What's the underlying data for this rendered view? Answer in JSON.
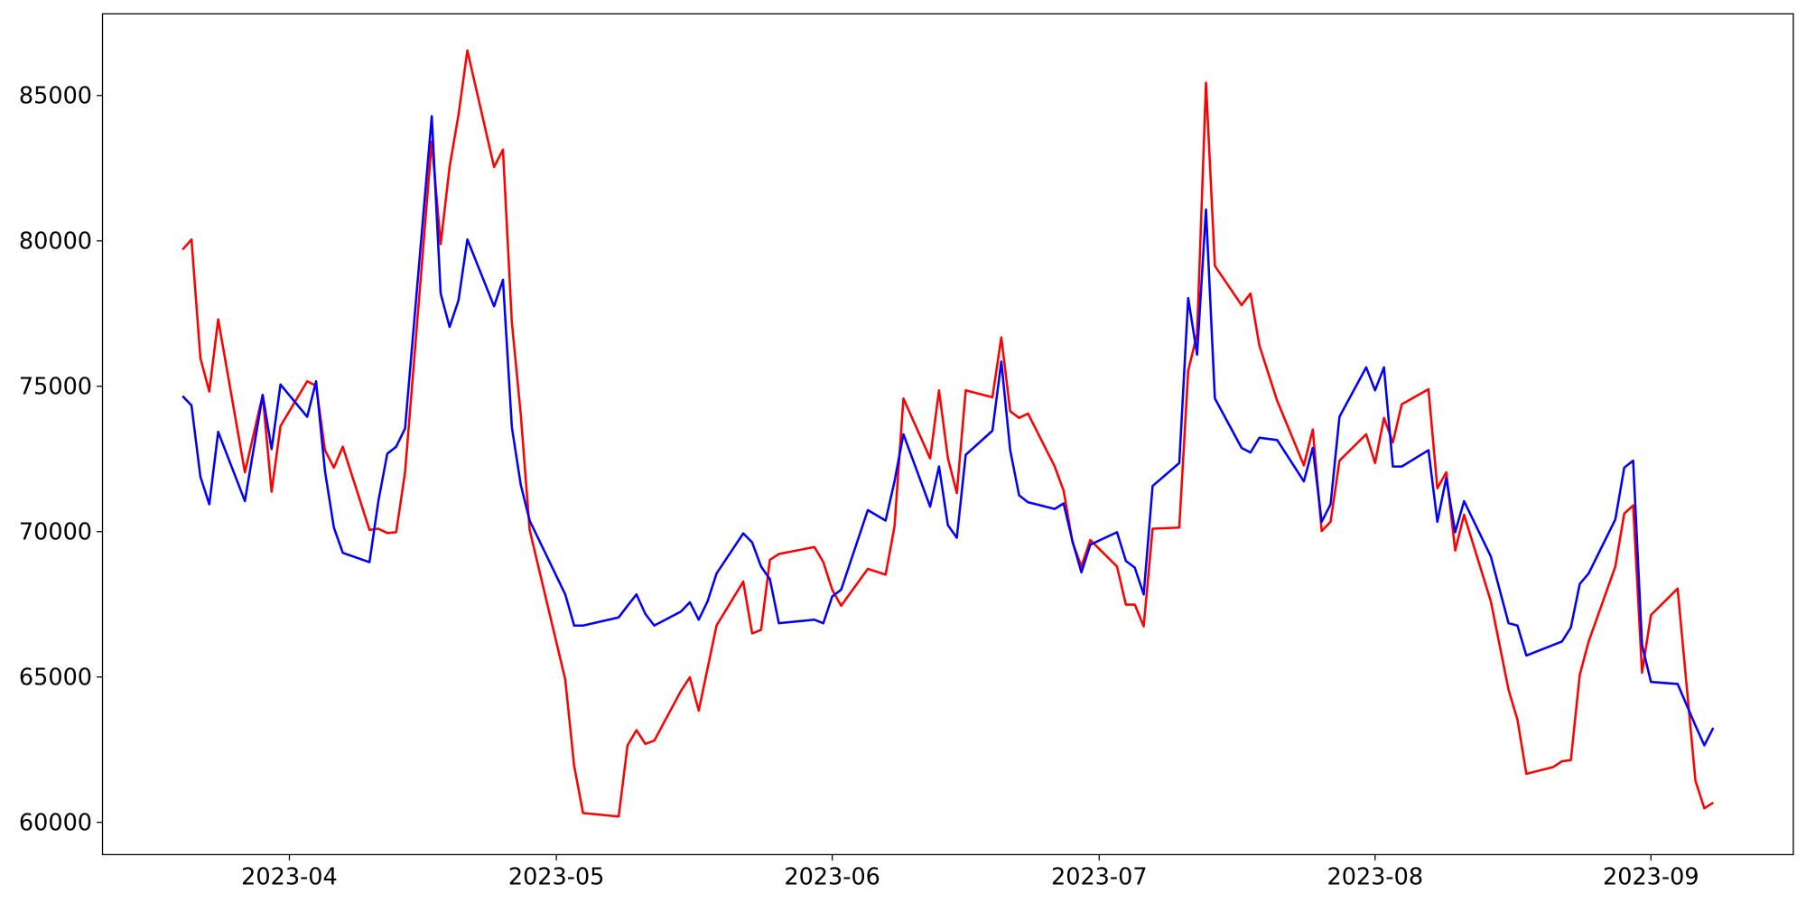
{
  "chart_data": {
    "type": "line",
    "x": [
      "2023-03-20",
      "2023-03-21",
      "2023-03-22",
      "2023-03-23",
      "2023-03-24",
      "2023-03-27",
      "2023-03-29",
      "2023-03-30",
      "2023-03-31",
      "2023-04-03",
      "2023-04-04",
      "2023-04-05",
      "2023-04-06",
      "2023-04-07",
      "2023-04-10",
      "2023-04-11",
      "2023-04-12",
      "2023-04-13",
      "2023-04-14",
      "2023-04-17",
      "2023-04-18",
      "2023-04-19",
      "2023-04-20",
      "2023-04-21",
      "2023-04-24",
      "2023-04-25",
      "2023-04-26",
      "2023-04-27",
      "2023-04-28",
      "2023-05-02",
      "2023-05-03",
      "2023-05-04",
      "2023-05-08",
      "2023-05-09",
      "2023-05-10",
      "2023-05-11",
      "2023-05-12",
      "2023-05-15",
      "2023-05-16",
      "2023-05-17",
      "2023-05-18",
      "2023-05-19",
      "2023-05-22",
      "2023-05-23",
      "2023-05-24",
      "2023-05-25",
      "2023-05-26",
      "2023-05-30",
      "2023-05-31",
      "2023-06-01",
      "2023-06-02",
      "2023-06-05",
      "2023-06-07",
      "2023-06-08",
      "2023-06-09",
      "2023-06-12",
      "2023-06-13",
      "2023-06-14",
      "2023-06-15",
      "2023-06-16",
      "2023-06-19",
      "2023-06-20",
      "2023-06-21",
      "2023-06-22",
      "2023-06-23",
      "2023-06-26",
      "2023-06-27",
      "2023-06-28",
      "2023-06-29",
      "2023-06-30",
      "2023-07-03",
      "2023-07-04",
      "2023-07-05",
      "2023-07-06",
      "2023-07-07",
      "2023-07-10",
      "2023-07-11",
      "2023-07-12",
      "2023-07-13",
      "2023-07-14",
      "2023-07-17",
      "2023-07-18",
      "2023-07-19",
      "2023-07-21",
      "2023-07-24",
      "2023-07-25",
      "2023-07-26",
      "2023-07-27",
      "2023-07-28",
      "2023-07-31",
      "2023-08-01",
      "2023-08-02",
      "2023-08-03",
      "2023-08-04",
      "2023-08-07",
      "2023-08-08",
      "2023-08-09",
      "2023-08-10",
      "2023-08-11",
      "2023-08-14",
      "2023-08-16",
      "2023-08-17",
      "2023-08-18",
      "2023-08-21",
      "2023-08-22",
      "2023-08-23",
      "2023-08-24",
      "2023-08-25",
      "2023-08-28",
      "2023-08-29",
      "2023-08-30",
      "2023-08-31",
      "2023-09-01",
      "2023-09-04",
      "2023-09-06",
      "2023-09-07",
      "2023-09-08"
    ],
    "series": [
      {
        "color": "#ff0000",
        "values": [
          79700,
          80050,
          75970,
          74820,
          77300,
          72040,
          74700,
          71370,
          73630,
          75170,
          75020,
          72800,
          72200,
          72920,
          70060,
          70100,
          69950,
          69980,
          72040,
          83420,
          79890,
          82540,
          84330,
          86550,
          82540,
          83140,
          77200,
          74030,
          70060,
          64910,
          61940,
          60320,
          60200,
          62650,
          63170,
          62700,
          62810,
          64520,
          64990,
          63840,
          65310,
          66770,
          68280,
          66500,
          66620,
          69030,
          69230,
          69470,
          68950,
          68000,
          67450,
          68720,
          68520,
          70180,
          74580,
          72520,
          74860,
          72520,
          71330,
          74860,
          74620,
          76680,
          74140,
          73910,
          74060,
          72240,
          71410,
          69630,
          68800,
          69710,
          68800,
          67490,
          67490,
          66740,
          70100,
          70140,
          75530,
          76800,
          85440,
          79140,
          77790,
          78190,
          76400,
          74500,
          72280,
          73510,
          70020,
          70340,
          72440,
          73350,
          72360,
          73910,
          73070,
          74380,
          74900,
          71490,
          72040,
          69350,
          70580,
          67610,
          64560,
          63530,
          61670,
          61900,
          62100,
          62140,
          65070,
          66220,
          68800,
          70620,
          70900,
          65150,
          67130,
          68040,
          61430,
          60480,
          60680
        ]
      },
      {
        "color": "#0000ff",
        "values": [
          74660,
          74340,
          71890,
          70940,
          73430,
          71050,
          74700,
          72840,
          75060,
          73950,
          75170,
          72080,
          70140,
          69270,
          68950,
          71050,
          72680,
          72920,
          73550,
          84290,
          78190,
          77040,
          77950,
          80050,
          77750,
          78660,
          73590,
          71610,
          70380,
          67840,
          66770,
          66770,
          67050,
          67450,
          67840,
          67170,
          66770,
          67250,
          67570,
          66970,
          67610,
          68560,
          69940,
          69630,
          68800,
          68360,
          66850,
          66970,
          66850,
          67770,
          68000,
          70740,
          70380,
          71730,
          73350,
          70860,
          72240,
          70220,
          69790,
          72640,
          73470,
          75850,
          72800,
          71250,
          71010,
          70780,
          70970,
          69670,
          68600,
          69550,
          69980,
          68990,
          68760,
          67840,
          71570,
          72360,
          78030,
          76090,
          81080,
          74580,
          72880,
          72720,
          73230,
          73150,
          71730,
          72880,
          70340,
          70940,
          73950,
          75650,
          74860,
          75650,
          72240,
          72240,
          72800,
          70340,
          71850,
          69980,
          71050,
          69150,
          66850,
          66770,
          65740,
          66100,
          66220,
          66700,
          68200,
          68560,
          70420,
          72200,
          72440,
          66100,
          64830,
          64760,
          63330,
          62650,
          63250
        ]
      }
    ],
    "xlim": [
      "2023-03-11",
      "2023-09-17"
    ],
    "xticks": [
      {
        "value": "2023-04-01",
        "label": "2023-04"
      },
      {
        "value": "2023-05-01",
        "label": "2023-05"
      },
      {
        "value": "2023-06-01",
        "label": "2023-06"
      },
      {
        "value": "2023-07-01",
        "label": "2023-07"
      },
      {
        "value": "2023-08-01",
        "label": "2023-08"
      },
      {
        "value": "2023-09-01",
        "label": "2023-09"
      }
    ],
    "ylim": [
      58890,
      87810
    ],
    "yticks": [
      60000,
      65000,
      70000,
      75000,
      80000,
      85000
    ],
    "grid": false
  }
}
